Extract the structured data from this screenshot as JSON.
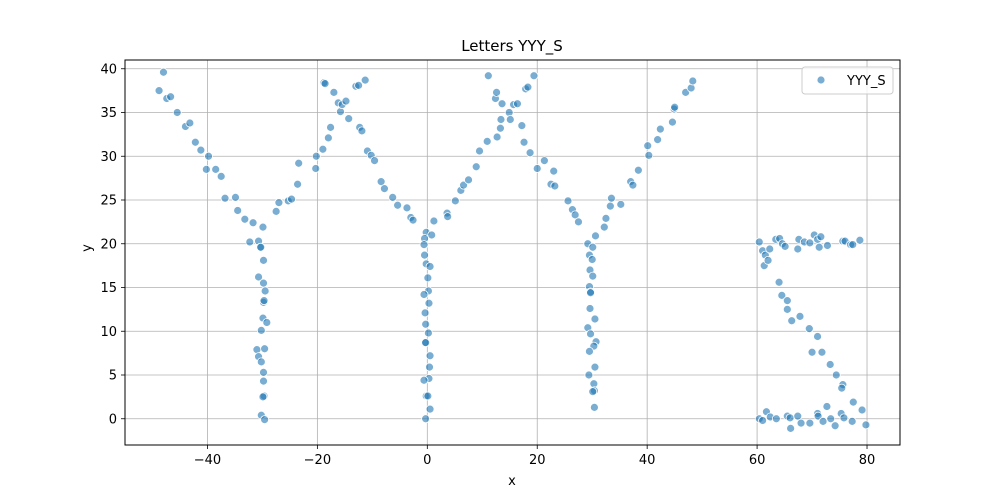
{
  "chart_data": {
    "type": "scatter",
    "title": "Letters YYY_S",
    "xlabel": "x",
    "ylabel": "y",
    "xlim": [
      -55,
      86
    ],
    "ylim": [
      -3,
      41
    ],
    "xticks": [
      -40,
      -20,
      0,
      20,
      40,
      60,
      80
    ],
    "yticks": [
      0,
      5,
      10,
      15,
      20,
      25,
      30,
      35,
      40
    ],
    "grid": true,
    "legend": "top-right",
    "colors": {
      "series": "#1f77b4"
    },
    "series": [
      {
        "name": "YYY_S",
        "points": [
          [
            -48.8,
            37.5
          ],
          [
            -48.0,
            39.6
          ],
          [
            -47.4,
            36.6
          ],
          [
            -46.7,
            36.8
          ],
          [
            -45.5,
            35.0
          ],
          [
            -44.0,
            33.4
          ],
          [
            -43.2,
            33.8
          ],
          [
            -42.2,
            31.6
          ],
          [
            -41.2,
            30.7
          ],
          [
            -40.2,
            28.5
          ],
          [
            -39.8,
            30.0
          ],
          [
            -38.5,
            28.5
          ],
          [
            -37.5,
            27.7
          ],
          [
            -36.8,
            25.2
          ],
          [
            -34.9,
            25.3
          ],
          [
            -34.5,
            23.8
          ],
          [
            -33.2,
            22.8
          ],
          [
            -32.3,
            20.2
          ],
          [
            -31.7,
            22.4
          ],
          [
            -30.7,
            20.3
          ],
          [
            -30.4,
            19.6
          ],
          [
            -29.9,
            21.9
          ],
          [
            -27.5,
            23.7
          ],
          [
            -27.0,
            24.7
          ],
          [
            -25.3,
            24.9
          ],
          [
            -24.7,
            25.1
          ],
          [
            -23.6,
            26.8
          ],
          [
            -23.4,
            29.2
          ],
          [
            -20.3,
            28.6
          ],
          [
            -20.2,
            30.0
          ],
          [
            -19.0,
            30.8
          ],
          [
            -18.8,
            38.4
          ],
          [
            -18.6,
            38.3
          ],
          [
            -18.0,
            32.1
          ],
          [
            -17.6,
            33.3
          ],
          [
            -17.0,
            37.3
          ],
          [
            -16.2,
            36.1
          ],
          [
            -15.8,
            35.1
          ],
          [
            -15.5,
            35.9
          ],
          [
            -14.8,
            36.3
          ],
          [
            -14.3,
            34.3
          ],
          [
            -13.0,
            38.0
          ],
          [
            -12.5,
            38.1
          ],
          [
            -12.3,
            33.3
          ],
          [
            -11.9,
            32.9
          ],
          [
            -11.3,
            38.7
          ],
          [
            -10.9,
            30.6
          ],
          [
            -10.2,
            30.1
          ],
          [
            -9.6,
            29.5
          ],
          [
            -8.4,
            27.1
          ],
          [
            -7.8,
            26.3
          ],
          [
            -6.3,
            25.3
          ],
          [
            -5.4,
            24.4
          ],
          [
            -3.7,
            24.1
          ],
          [
            -3.0,
            23.0
          ],
          [
            -2.6,
            22.7
          ],
          [
            -30.7,
            16.2
          ],
          [
            -30.3,
            19.6
          ],
          [
            -29.8,
            18.1
          ],
          [
            -29.8,
            15.5
          ],
          [
            -29.5,
            14.6
          ],
          [
            -29.8,
            13.3
          ],
          [
            -29.7,
            13.5
          ],
          [
            -29.9,
            11.5
          ],
          [
            -29.2,
            11.0
          ],
          [
            -30.2,
            10.1
          ],
          [
            -31.0,
            7.9
          ],
          [
            -30.7,
            7.1
          ],
          [
            -29.6,
            8.0
          ],
          [
            -30.2,
            6.5
          ],
          [
            -29.8,
            5.3
          ],
          [
            -29.8,
            4.3
          ],
          [
            -29.7,
            2.6
          ],
          [
            -29.9,
            2.5
          ],
          [
            -30.2,
            0.4
          ],
          [
            -29.6,
            -0.1
          ],
          [
            -0.2,
            21.3
          ],
          [
            0.8,
            21.0
          ],
          [
            1.2,
            22.6
          ],
          [
            3.6,
            23.5
          ],
          [
            3.7,
            23.1
          ],
          [
            5.1,
            24.9
          ],
          [
            6.1,
            26.1
          ],
          [
            6.6,
            26.7
          ],
          [
            7.5,
            27.3
          ],
          [
            8.9,
            28.8
          ],
          [
            9.5,
            30.6
          ],
          [
            10.9,
            31.7
          ],
          [
            11.1,
            39.2
          ],
          [
            12.4,
            36.6
          ],
          [
            12.6,
            37.3
          ],
          [
            12.7,
            32.2
          ],
          [
            13.3,
            33.2
          ],
          [
            13.4,
            34.2
          ],
          [
            13.6,
            36.0
          ],
          [
            14.9,
            35.0
          ],
          [
            15.1,
            34.2
          ],
          [
            15.7,
            35.9
          ],
          [
            16.4,
            36.0
          ],
          [
            17.2,
            33.5
          ],
          [
            17.6,
            31.6
          ],
          [
            17.9,
            37.7
          ],
          [
            18.3,
            37.9
          ],
          [
            18.7,
            30.4
          ],
          [
            19.4,
            39.2
          ],
          [
            20.0,
            28.6
          ],
          [
            21.3,
            29.5
          ],
          [
            22.5,
            26.8
          ],
          [
            23.2,
            26.6
          ],
          [
            23.0,
            28.3
          ],
          [
            25.6,
            24.9
          ],
          [
            26.4,
            23.9
          ],
          [
            26.9,
            23.3
          ],
          [
            27.5,
            22.5
          ],
          [
            29.2,
            20.0
          ],
          [
            30.1,
            19.6
          ],
          [
            30.6,
            20.9
          ],
          [
            32.2,
            21.9
          ],
          [
            32.5,
            22.9
          ],
          [
            33.3,
            24.3
          ],
          [
            33.5,
            25.2
          ],
          [
            35.2,
            24.5
          ],
          [
            37.0,
            27.1
          ],
          [
            37.4,
            26.7
          ],
          [
            38.4,
            28.4
          ],
          [
            40.1,
            31.2
          ],
          [
            40.3,
            30.1
          ],
          [
            41.9,
            31.9
          ],
          [
            42.4,
            33.1
          ],
          [
            44.6,
            33.9
          ],
          [
            44.9,
            35.4
          ],
          [
            45.0,
            35.6
          ],
          [
            47.0,
            37.3
          ],
          [
            48.0,
            37.8
          ],
          [
            48.3,
            38.6
          ],
          [
            -0.5,
            20.6
          ],
          [
            -0.6,
            19.9
          ],
          [
            -0.5,
            18.7
          ],
          [
            -0.2,
            17.7
          ],
          [
            0.5,
            17.4
          ],
          [
            0.1,
            16.1
          ],
          [
            0.2,
            14.6
          ],
          [
            -0.6,
            14.2
          ],
          [
            0.3,
            13.2
          ],
          [
            -0.4,
            12.1
          ],
          [
            -0.3,
            10.8
          ],
          [
            0.2,
            9.8
          ],
          [
            -0.4,
            8.7
          ],
          [
            -0.3,
            8.7
          ],
          [
            0.5,
            7.2
          ],
          [
            0.4,
            5.9
          ],
          [
            0.3,
            4.6
          ],
          [
            -0.6,
            4.4
          ],
          [
            -0.2,
            2.6
          ],
          [
            0.1,
            2.6
          ],
          [
            0.5,
            1.1
          ],
          [
            -0.3,
            0.0
          ],
          [
            29.5,
            18.7
          ],
          [
            30.0,
            18.2
          ],
          [
            29.6,
            17.0
          ],
          [
            30.1,
            16.3
          ],
          [
            29.5,
            15.1
          ],
          [
            29.7,
            14.5
          ],
          [
            29.7,
            14.4
          ],
          [
            29.6,
            12.6
          ],
          [
            30.5,
            11.4
          ],
          [
            29.2,
            10.4
          ],
          [
            29.7,
            9.7
          ],
          [
            30.7,
            8.8
          ],
          [
            30.3,
            8.3
          ],
          [
            29.5,
            7.7
          ],
          [
            30.5,
            5.9
          ],
          [
            29.4,
            5.0
          ],
          [
            30.3,
            4.0
          ],
          [
            30.4,
            3.2
          ],
          [
            30.1,
            3.1
          ],
          [
            30.4,
            1.3
          ],
          [
            60.4,
            20.2
          ],
          [
            61.0,
            19.2
          ],
          [
            61.5,
            18.7
          ],
          [
            61.3,
            17.5
          ],
          [
            62.0,
            18.1
          ],
          [
            62.3,
            19.4
          ],
          [
            63.4,
            20.5
          ],
          [
            64.1,
            20.6
          ],
          [
            64.6,
            20.0
          ],
          [
            65.1,
            19.7
          ],
          [
            67.4,
            19.4
          ],
          [
            67.6,
            20.5
          ],
          [
            68.6,
            20.2
          ],
          [
            69.6,
            20.1
          ],
          [
            70.4,
            21.0
          ],
          [
            71.0,
            20.5
          ],
          [
            71.3,
            19.6
          ],
          [
            71.6,
            20.8
          ],
          [
            72.8,
            19.8
          ],
          [
            75.6,
            20.3
          ],
          [
            76.0,
            20.3
          ],
          [
            77.0,
            19.9
          ],
          [
            77.4,
            19.9
          ],
          [
            78.7,
            20.4
          ],
          [
            64.0,
            15.6
          ],
          [
            64.5,
            14.1
          ],
          [
            65.5,
            13.5
          ],
          [
            65.5,
            12.5
          ],
          [
            66.3,
            11.2
          ],
          [
            67.8,
            11.7
          ],
          [
            69.5,
            10.3
          ],
          [
            70.0,
            7.6
          ],
          [
            71.0,
            9.4
          ],
          [
            71.8,
            7.6
          ],
          [
            73.3,
            6.2
          ],
          [
            74.4,
            5.0
          ],
          [
            75.6,
            3.9
          ],
          [
            75.4,
            3.5
          ],
          [
            77.5,
            1.9
          ],
          [
            79.1,
            1.0
          ],
          [
            60.4,
            0.0
          ],
          [
            61.0,
            -0.2
          ],
          [
            61.7,
            0.8
          ],
          [
            62.4,
            0.2
          ],
          [
            63.5,
            -0.0
          ],
          [
            65.5,
            0.3
          ],
          [
            66.0,
            0.1
          ],
          [
            66.1,
            -1.1
          ],
          [
            67.4,
            0.3
          ],
          [
            68.0,
            -0.5
          ],
          [
            69.6,
            -0.5
          ],
          [
            71.0,
            0.6
          ],
          [
            71.1,
            0.3
          ],
          [
            72.0,
            -0.3
          ],
          [
            72.7,
            1.4
          ],
          [
            73.4,
            0.0
          ],
          [
            74.2,
            -0.8
          ],
          [
            75.3,
            0.6
          ],
          [
            75.8,
            0.1
          ],
          [
            77.3,
            -0.3
          ],
          [
            79.8,
            -0.7
          ]
        ]
      }
    ]
  }
}
